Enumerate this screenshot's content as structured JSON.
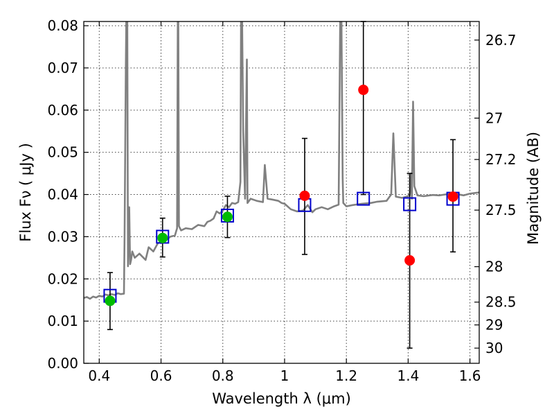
{
  "chart_data": {
    "type": "scatter",
    "title": "",
    "xlabel": "Wavelength  λ (μm)",
    "ylabel": "Flux  Fν  ( μJy )",
    "ylabel_right": "Magnitude (AB)",
    "xlim": [
      0.35,
      1.63
    ],
    "ylim": [
      0.0,
      0.081
    ],
    "grid": true,
    "x_ticks": [
      0.4,
      0.6,
      0.8,
      1.0,
      1.2,
      1.4,
      1.6
    ],
    "x_tick_labels": [
      "0.4",
      "0.6",
      "0.8",
      "1",
      "1.2",
      "1.4",
      "1.6"
    ],
    "y_ticks": [
      0.0,
      0.01,
      0.02,
      0.03,
      0.04,
      0.05,
      0.06,
      0.07,
      0.08
    ],
    "y_tick_labels": [
      "0.00",
      "0.01",
      "0.02",
      "0.03",
      "0.04",
      "0.05",
      "0.06",
      "0.07",
      "0.08"
    ],
    "right_ticks": [
      {
        "label": "26.7",
        "flux": 0.0766
      },
      {
        "label": "27",
        "flux": 0.0581
      },
      {
        "label": "27.2",
        "flux": 0.0483
      },
      {
        "label": "27.5",
        "flux": 0.0363
      },
      {
        "label": "28",
        "flux": 0.0229
      },
      {
        "label": "28.5",
        "flux": 0.0145
      },
      {
        "label": "29",
        "flux": 0.0091
      },
      {
        "label": "30",
        "flux": 0.0036
      }
    ],
    "template_spectrum": {
      "color": "#808080",
      "x": [
        0.35,
        0.36,
        0.37,
        0.38,
        0.39,
        0.4,
        0.41,
        0.42,
        0.43,
        0.44,
        0.45,
        0.46,
        0.47,
        0.48,
        0.482,
        0.486,
        0.49,
        0.493,
        0.497,
        0.5,
        0.503,
        0.507,
        0.515,
        0.53,
        0.55,
        0.56,
        0.575,
        0.59,
        0.61,
        0.63,
        0.645,
        0.652,
        0.655,
        0.658,
        0.665,
        0.68,
        0.7,
        0.72,
        0.74,
        0.75,
        0.76,
        0.77,
        0.78,
        0.79,
        0.8,
        0.81,
        0.82,
        0.83,
        0.84,
        0.85,
        0.857,
        0.86,
        0.866,
        0.872,
        0.878,
        0.88,
        0.89,
        0.91,
        0.93,
        0.936,
        0.945,
        0.96,
        0.98,
        0.99,
        1.0,
        1.02,
        1.04,
        1.06,
        1.075,
        1.09,
        1.1,
        1.12,
        1.14,
        1.16,
        1.175,
        1.182,
        1.188,
        1.19,
        1.2,
        1.22,
        1.25,
        1.28,
        1.3,
        1.33,
        1.345,
        1.352,
        1.36,
        1.38,
        1.395,
        1.405,
        1.41,
        1.412,
        1.416,
        1.42,
        1.43,
        1.45,
        1.48,
        1.5,
        1.52,
        1.55,
        1.58,
        1.6,
        1.63
      ],
      "y": [
        0.0155,
        0.0157,
        0.0153,
        0.0158,
        0.0156,
        0.016,
        0.0158,
        0.0163,
        0.0161,
        0.0164,
        0.0162,
        0.0166,
        0.0164,
        0.0165,
        0.03,
        0.07,
        0.1,
        0.023,
        0.037,
        0.0235,
        0.0245,
        0.0265,
        0.025,
        0.026,
        0.0245,
        0.0275,
        0.0265,
        0.0285,
        0.0288,
        0.03,
        0.0303,
        0.032,
        0.1,
        0.0325,
        0.0315,
        0.032,
        0.0318,
        0.0328,
        0.0325,
        0.0335,
        0.0338,
        0.0343,
        0.036,
        0.0355,
        0.0362,
        0.0375,
        0.037,
        0.038,
        0.0378,
        0.0382,
        0.043,
        0.1,
        0.055,
        0.039,
        0.072,
        0.038,
        0.039,
        0.0385,
        0.0382,
        0.047,
        0.039,
        0.0388,
        0.0385,
        0.038,
        0.0378,
        0.0365,
        0.036,
        0.0362,
        0.0375,
        0.0358,
        0.0365,
        0.037,
        0.0365,
        0.0372,
        0.0376,
        0.1,
        0.044,
        0.038,
        0.0372,
        0.0375,
        0.0378,
        0.038,
        0.0383,
        0.0385,
        0.04,
        0.0545,
        0.0395,
        0.0392,
        0.0395,
        0.0398,
        0.045,
        0.039,
        0.062,
        0.042,
        0.0398,
        0.0396,
        0.0399,
        0.0398,
        0.04,
        0.0402,
        0.0398,
        0.0402,
        0.0405
      ]
    },
    "series": [
      {
        "marker": "circle",
        "color": "#00bb00",
        "points": [
          {
            "x": 0.435,
            "y": 0.0148,
            "yerr_low": 0.008,
            "yerr_high": 0.0215
          },
          {
            "x": 0.605,
            "y": 0.0297,
            "yerr_low": 0.0252,
            "yerr_high": 0.0344
          },
          {
            "x": 0.815,
            "y": 0.0347,
            "yerr_low": 0.0298,
            "yerr_high": 0.0396
          }
        ]
      },
      {
        "marker": "circle",
        "color": "#ff0000",
        "points": [
          {
            "x": 1.065,
            "y": 0.0397,
            "yerr_low": 0.0258,
            "yerr_high": 0.0533
          },
          {
            "x": 1.255,
            "y": 0.0648,
            "yerr_low": 0.04,
            "yerr_high": 0.081
          },
          {
            "x": 1.405,
            "y": 0.0244,
            "yerr_low": 0.0036,
            "yerr_high": 0.045
          },
          {
            "x": 1.545,
            "y": 0.0395,
            "yerr_low": 0.0264,
            "yerr_high": 0.053
          }
        ]
      },
      {
        "marker": "open-square",
        "color": "#0000cc",
        "points": [
          {
            "x": 0.435,
            "y": 0.016
          },
          {
            "x": 0.605,
            "y": 0.03
          },
          {
            "x": 0.815,
            "y": 0.035
          },
          {
            "x": 1.065,
            "y": 0.0375
          },
          {
            "x": 1.255,
            "y": 0.039
          },
          {
            "x": 1.405,
            "y": 0.0377
          },
          {
            "x": 1.545,
            "y": 0.039
          }
        ]
      }
    ]
  }
}
